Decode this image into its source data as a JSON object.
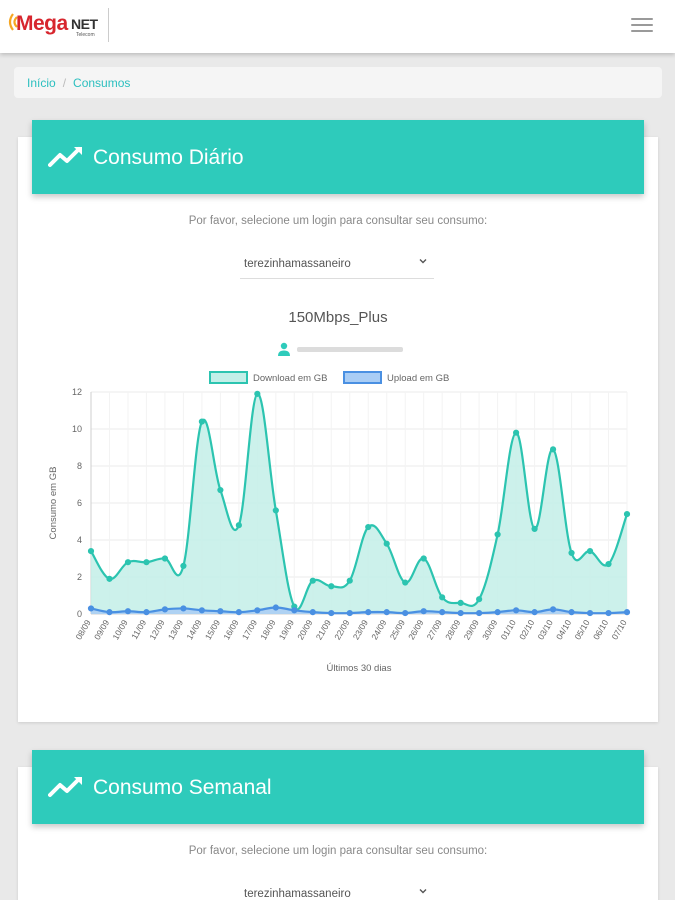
{
  "header": {
    "logo_mega": "Mega",
    "logo_net": "NET",
    "logo_sub": "Telecom",
    "menu_icon": "hamburger-menu-icon"
  },
  "breadcrumb": {
    "home": "Início",
    "separator": "/",
    "current": "Consumos"
  },
  "daily": {
    "title": "Consumo Diário",
    "icon": "trend-line-icon",
    "prompt": "Por favor, selecione um login para consultar seu consumo:",
    "login_value": "terezinhamassaneiro",
    "plan": "150Mbps_Plus",
    "user_icon": "user-icon"
  },
  "weekly": {
    "title": "Consumo Semanal",
    "icon": "trend-line-icon",
    "prompt": "Por favor, selecione um login para consultar seu consumo:",
    "login_value": "terezinhamassaneiro"
  },
  "colors": {
    "accent": "#2ecbbb",
    "download_line": "#2cc4b0",
    "download_fill": "#c3efe8",
    "upload_line": "#4a90e2",
    "upload_fill": "#a9cdf5"
  },
  "chart_data": {
    "type": "area",
    "xlabel": "Últimos 30 dias",
    "ylabel": "Consumo em GB",
    "ylim": [
      0,
      12
    ],
    "yticks": [
      0,
      2,
      4,
      6,
      8,
      10,
      12
    ],
    "grid": true,
    "legend": "top",
    "categories": [
      "08/09",
      "09/09",
      "10/09",
      "11/09",
      "12/09",
      "13/09",
      "14/09",
      "15/09",
      "16/09",
      "17/09",
      "18/09",
      "19/09",
      "20/09",
      "21/09",
      "22/09",
      "23/09",
      "24/09",
      "25/09",
      "26/09",
      "27/09",
      "28/09",
      "29/09",
      "30/09",
      "01/10",
      "02/10",
      "03/10",
      "04/10",
      "05/10",
      "06/10",
      "07/10"
    ],
    "series": [
      {
        "name": "Download em GB",
        "values": [
          3.4,
          1.9,
          2.8,
          2.8,
          3.0,
          2.6,
          10.4,
          6.7,
          4.8,
          11.9,
          5.6,
          0.4,
          1.8,
          1.5,
          1.8,
          4.7,
          3.8,
          1.7,
          3.0,
          0.9,
          0.6,
          0.8,
          4.3,
          9.8,
          4.6,
          8.9,
          3.3,
          3.4,
          2.7,
          5.4
        ]
      },
      {
        "name": "Upload em GB",
        "values": [
          0.3,
          0.1,
          0.15,
          0.1,
          0.25,
          0.3,
          0.2,
          0.15,
          0.1,
          0.2,
          0.35,
          0.2,
          0.1,
          0.05,
          0.05,
          0.1,
          0.1,
          0.05,
          0.15,
          0.1,
          0.05,
          0.05,
          0.1,
          0.2,
          0.1,
          0.25,
          0.1,
          0.05,
          0.05,
          0.1
        ]
      }
    ]
  }
}
